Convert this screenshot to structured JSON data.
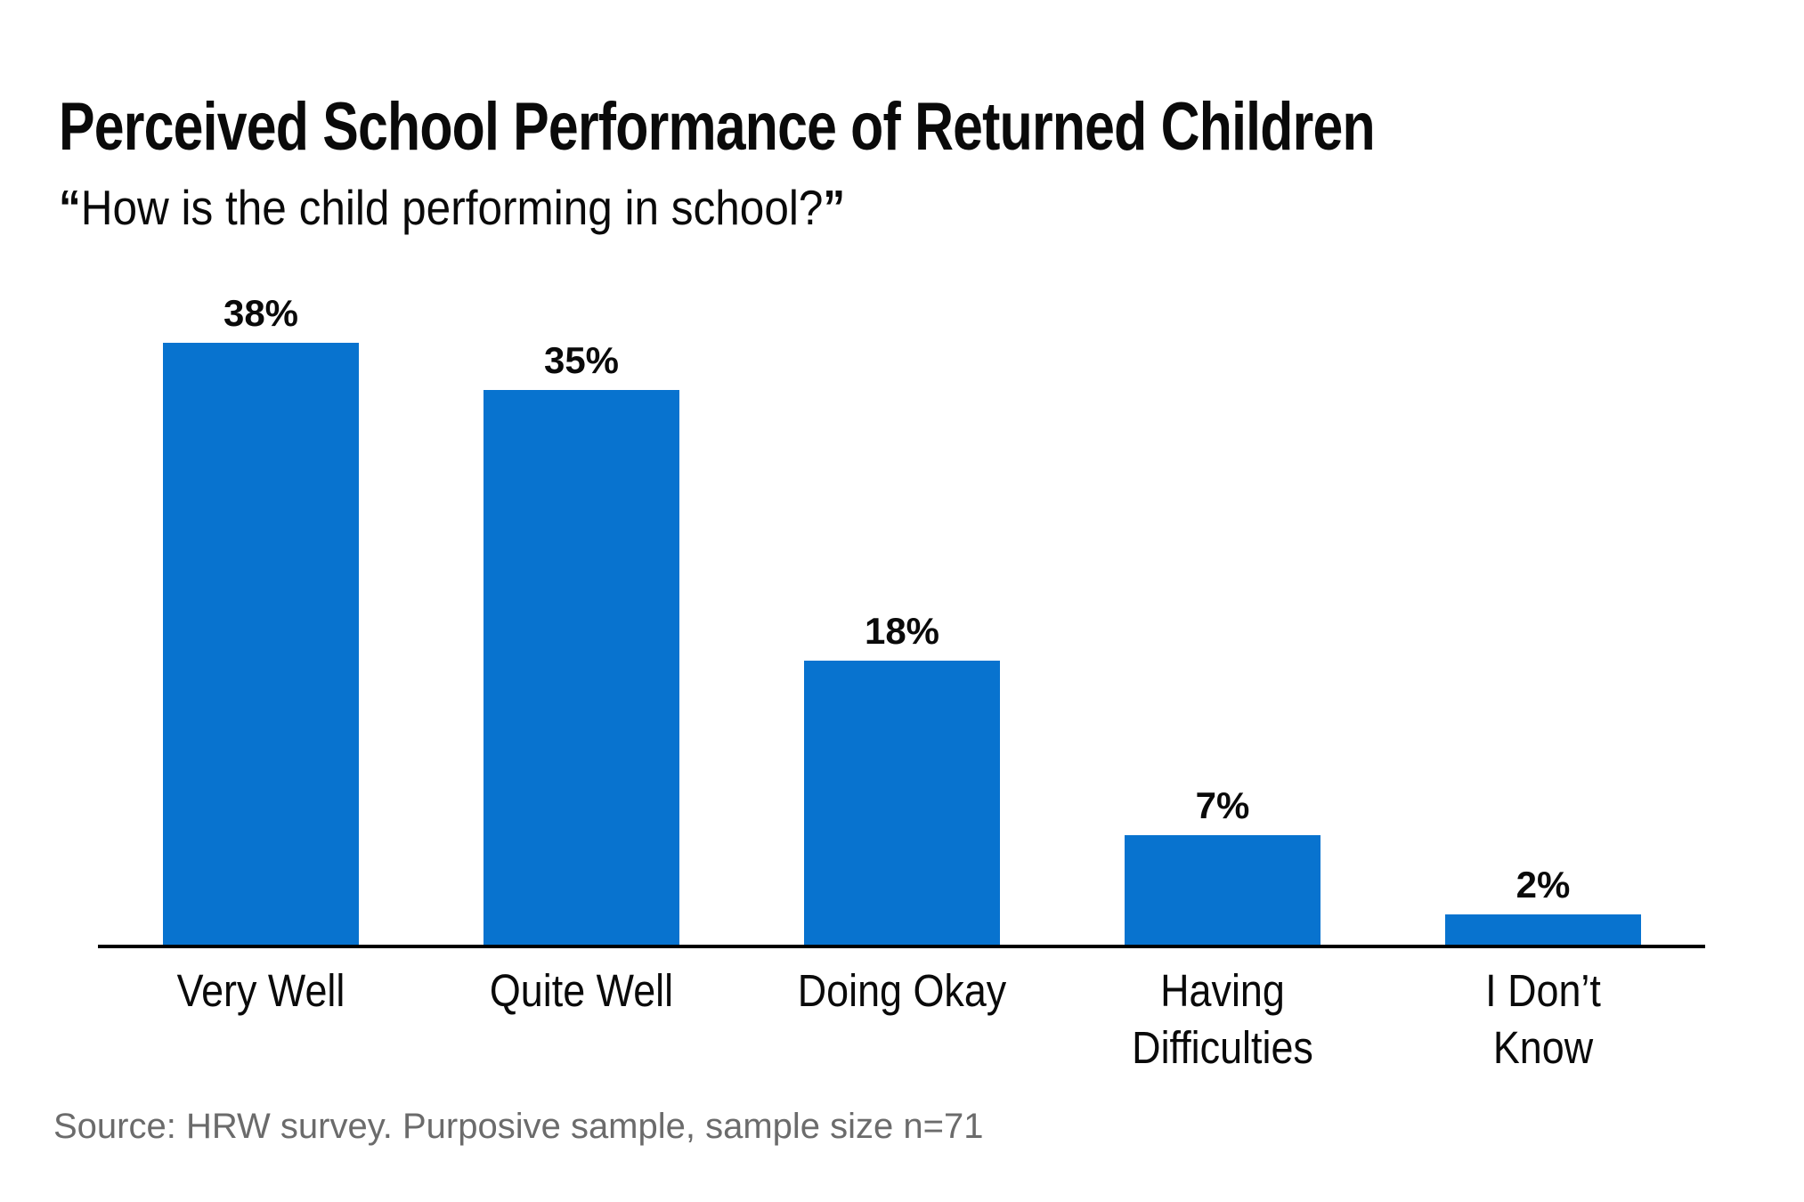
{
  "header": {
    "title": "Perceived School Performance of Returned Children",
    "subtitle_open_quote": "“",
    "subtitle_text": "How is the child performing in school?",
    "subtitle_close_quote": "”"
  },
  "chart_data": {
    "type": "bar",
    "title": "Perceived School Performance of Returned Children",
    "subtitle": "“How is the child performing in school?”",
    "categories": [
      "Very Well",
      "Quite Well",
      "Doing Okay",
      "Having\nDifficulties",
      "I Don’t\nKnow"
    ],
    "values": [
      38,
      35,
      18,
      7,
      2
    ],
    "value_labels": [
      "38%",
      "35%",
      "18%",
      "7%",
      "2%"
    ],
    "unit": "percent",
    "ylim": [
      0,
      40
    ],
    "grid": false,
    "legend": "none",
    "source": "Source: HRW survey. Purposive sample, sample size n=71"
  },
  "footer": {
    "source": "Source: HRW survey. Purposive sample, sample size n=71"
  },
  "colors": {
    "bar": "#0873cf",
    "axis": "#000000",
    "text": "#0a0a0a",
    "source_text": "#6b6b6b"
  }
}
